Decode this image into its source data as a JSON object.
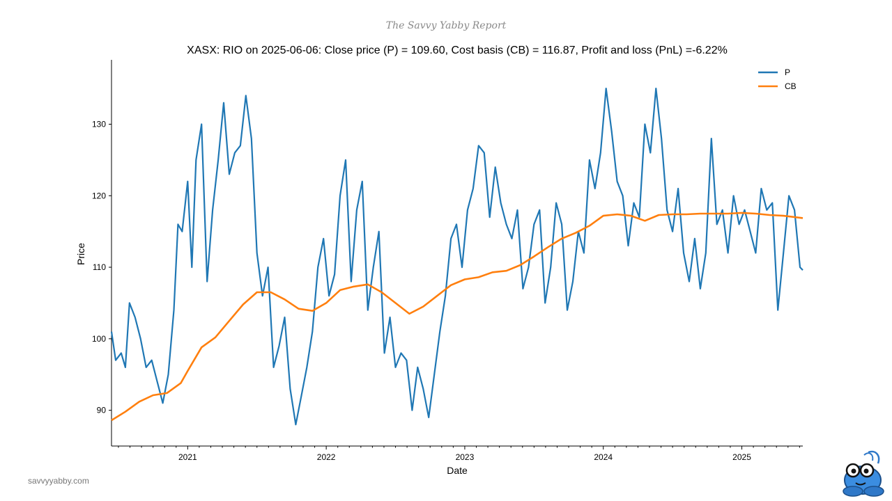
{
  "brand": "The Savvy Yabby Report",
  "website": "savvyyabby.com",
  "colors": {
    "price": "#1f77b4",
    "cost_basis": "#ff7f0e"
  },
  "chart_data": {
    "type": "line",
    "title": "XASX: RIO on 2025-06-06: Close price (P) = 109.60, Cost basis (CB) = 116.87, Profit and loss (PnL) =-6.22%",
    "xlabel": "Date",
    "ylabel": "Price",
    "xlim": [
      2020.45,
      2025.44
    ],
    "ylim": [
      85,
      139
    ],
    "x_ticks": [
      2021,
      2022,
      2023,
      2024,
      2025
    ],
    "x_tick_labels": [
      "2021",
      "2022",
      "2023",
      "2024",
      "2025"
    ],
    "y_ticks": [
      90,
      100,
      110,
      120,
      130
    ],
    "y_tick_labels": [
      "90",
      "100",
      "110",
      "120",
      "130"
    ],
    "legend": {
      "position": "top-right",
      "entries": [
        "P",
        "CB"
      ]
    },
    "series": [
      {
        "name": "P",
        "color": "#1f77b4",
        "x": [
          2020.45,
          2020.48,
          2020.52,
          2020.55,
          2020.58,
          2020.62,
          2020.66,
          2020.7,
          2020.74,
          2020.78,
          2020.82,
          2020.86,
          2020.9,
          2020.93,
          2020.96,
          2021.0,
          2021.03,
          2021.06,
          2021.1,
          2021.14,
          2021.18,
          2021.22,
          2021.26,
          2021.3,
          2021.34,
          2021.38,
          2021.42,
          2021.46,
          2021.5,
          2021.54,
          2021.58,
          2021.62,
          2021.66,
          2021.7,
          2021.74,
          2021.78,
          2021.82,
          2021.86,
          2021.9,
          2021.94,
          2021.98,
          2022.02,
          2022.06,
          2022.1,
          2022.14,
          2022.18,
          2022.22,
          2022.26,
          2022.3,
          2022.34,
          2022.38,
          2022.42,
          2022.46,
          2022.5,
          2022.54,
          2022.58,
          2022.62,
          2022.66,
          2022.7,
          2022.74,
          2022.78,
          2022.82,
          2022.86,
          2022.9,
          2022.94,
          2022.98,
          2023.02,
          2023.06,
          2023.1,
          2023.14,
          2023.18,
          2023.22,
          2023.26,
          2023.3,
          2023.34,
          2023.38,
          2023.42,
          2023.46,
          2023.5,
          2023.54,
          2023.58,
          2023.62,
          2023.66,
          2023.7,
          2023.74,
          2023.78,
          2023.82,
          2023.86,
          2023.9,
          2023.94,
          2023.98,
          2024.02,
          2024.06,
          2024.1,
          2024.14,
          2024.18,
          2024.22,
          2024.26,
          2024.3,
          2024.34,
          2024.38,
          2024.42,
          2024.46,
          2024.5,
          2024.54,
          2024.58,
          2024.62,
          2024.66,
          2024.7,
          2024.74,
          2024.78,
          2024.82,
          2024.86,
          2024.9,
          2024.94,
          2024.98,
          2025.02,
          2025.06,
          2025.1,
          2025.14,
          2025.18,
          2025.22,
          2025.26,
          2025.3,
          2025.34,
          2025.38,
          2025.42,
          2025.44
        ],
        "y": [
          101,
          97,
          98,
          96,
          105,
          103,
          100,
          96,
          97,
          94,
          91,
          95,
          104,
          116,
          115,
          122,
          110,
          125,
          130,
          108,
          118,
          125,
          133,
          123,
          126,
          127,
          134,
          128,
          112,
          106,
          110,
          96,
          99,
          103,
          93,
          88,
          92,
          96,
          101,
          110,
          114,
          106,
          109,
          120,
          125,
          108,
          118,
          122,
          104,
          110,
          115,
          98,
          103,
          96,
          98,
          97,
          90,
          96,
          93,
          89,
          95,
          101,
          106,
          114,
          116,
          110,
          118,
          121,
          127,
          126,
          117,
          124,
          119,
          116,
          114,
          118,
          107,
          110,
          116,
          118,
          105,
          110,
          119,
          116,
          104,
          108,
          115,
          112,
          125,
          121,
          126,
          135,
          129,
          122,
          120,
          113,
          119,
          117,
          130,
          126,
          135,
          128,
          118,
          115,
          121,
          112,
          108,
          114,
          107,
          112,
          128,
          116,
          118,
          112,
          120,
          116,
          118,
          115,
          112,
          121,
          118,
          119,
          104,
          112,
          120,
          118,
          110,
          109.6
        ]
      },
      {
        "name": "CB",
        "color": "#ff7f0e",
        "x": [
          2020.45,
          2020.55,
          2020.65,
          2020.75,
          2020.85,
          2020.95,
          2021.0,
          2021.1,
          2021.2,
          2021.3,
          2021.4,
          2021.5,
          2021.6,
          2021.7,
          2021.8,
          2021.9,
          2022.0,
          2022.1,
          2022.2,
          2022.3,
          2022.4,
          2022.5,
          2022.6,
          2022.7,
          2022.8,
          2022.9,
          2023.0,
          2023.1,
          2023.2,
          2023.3,
          2023.4,
          2023.5,
          2023.6,
          2023.7,
          2023.8,
          2023.9,
          2024.0,
          2024.1,
          2024.2,
          2024.3,
          2024.4,
          2024.5,
          2024.6,
          2024.7,
          2024.8,
          2024.9,
          2025.0,
          2025.1,
          2025.2,
          2025.3,
          2025.44
        ],
        "y": [
          88.6,
          89.8,
          91.2,
          92.1,
          92.4,
          93.8,
          95.5,
          98.8,
          100.2,
          102.5,
          104.8,
          106.5,
          106.5,
          105.5,
          104.2,
          103.9,
          105.0,
          106.8,
          107.3,
          107.6,
          106.5,
          105.0,
          103.5,
          104.5,
          106.0,
          107.5,
          108.3,
          108.6,
          109.3,
          109.5,
          110.3,
          111.5,
          112.8,
          114.0,
          114.8,
          115.8,
          117.2,
          117.4,
          117.2,
          116.5,
          117.3,
          117.4,
          117.4,
          117.5,
          117.5,
          117.5,
          117.6,
          117.5,
          117.3,
          117.2,
          116.87
        ]
      }
    ]
  }
}
